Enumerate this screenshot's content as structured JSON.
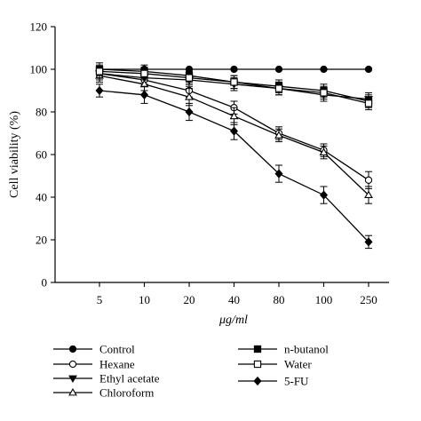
{
  "chart_data": {
    "type": "line",
    "xlabel": "μg/ml",
    "ylabel": "Cell viability (%)",
    "categories": [
      "5",
      "10",
      "20",
      "40",
      "80",
      "100",
      "250"
    ],
    "ylim": [
      0,
      120
    ],
    "yticks": [
      "0",
      "20",
      "40",
      "60",
      "80",
      "100",
      "120"
    ],
    "grid": false,
    "legend_position": "bottom",
    "series": [
      {
        "name": "Control",
        "marker": "filled-circle",
        "values": [
          100,
          100,
          100,
          100,
          100,
          100,
          100
        ],
        "errors": [
          0,
          0,
          0,
          0,
          0,
          0,
          0
        ]
      },
      {
        "name": "Hexane",
        "marker": "open-circle",
        "values": [
          98,
          95,
          90,
          82,
          70,
          62,
          48
        ],
        "errors": [
          2,
          3,
          3,
          3,
          3,
          3,
          4
        ]
      },
      {
        "name": "Ethyl acetate",
        "marker": "filled-triangle-down",
        "values": [
          98,
          96,
          95,
          93,
          91,
          88,
          86
        ],
        "errors": [
          3,
          3,
          3,
          3,
          3,
          3,
          3
        ]
      },
      {
        "name": "Chloroform",
        "marker": "open-triangle-up",
        "values": [
          97,
          93,
          87,
          78,
          69,
          61,
          41
        ],
        "errors": [
          3,
          3,
          4,
          4,
          3,
          3,
          4
        ]
      },
      {
        "name": "n-butanol",
        "marker": "filled-square",
        "values": [
          100,
          99,
          97,
          94,
          92,
          90,
          85
        ],
        "errors": [
          3,
          3,
          3,
          3,
          3,
          3,
          3
        ]
      },
      {
        "name": "Water",
        "marker": "open-square",
        "values": [
          99,
          98,
          96,
          94,
          91,
          89,
          84
        ],
        "errors": [
          3,
          3,
          3,
          3,
          3,
          3,
          3
        ]
      },
      {
        "name": "5-FU",
        "marker": "filled-diamond",
        "values": [
          90,
          88,
          80,
          71,
          51,
          41,
          19
        ],
        "errors": [
          3,
          4,
          4,
          4,
          4,
          4,
          3
        ]
      }
    ]
  }
}
